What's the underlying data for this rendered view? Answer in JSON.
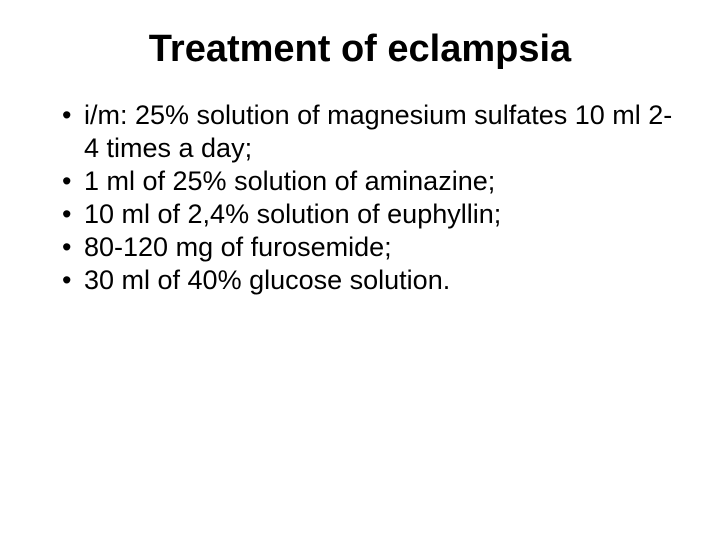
{
  "title": "Treatment of eclampsia",
  "bullets": [
    "i/m: 25% solution of magnesium sulfates 10 ml 2-4 times a day;",
    "1 ml of 25% solution of aminazine;",
    "10 ml of 2,4% solution of euphyllin;",
    "80-120 mg of furosemide;",
    "30 ml of 40% glucose solution."
  ]
}
